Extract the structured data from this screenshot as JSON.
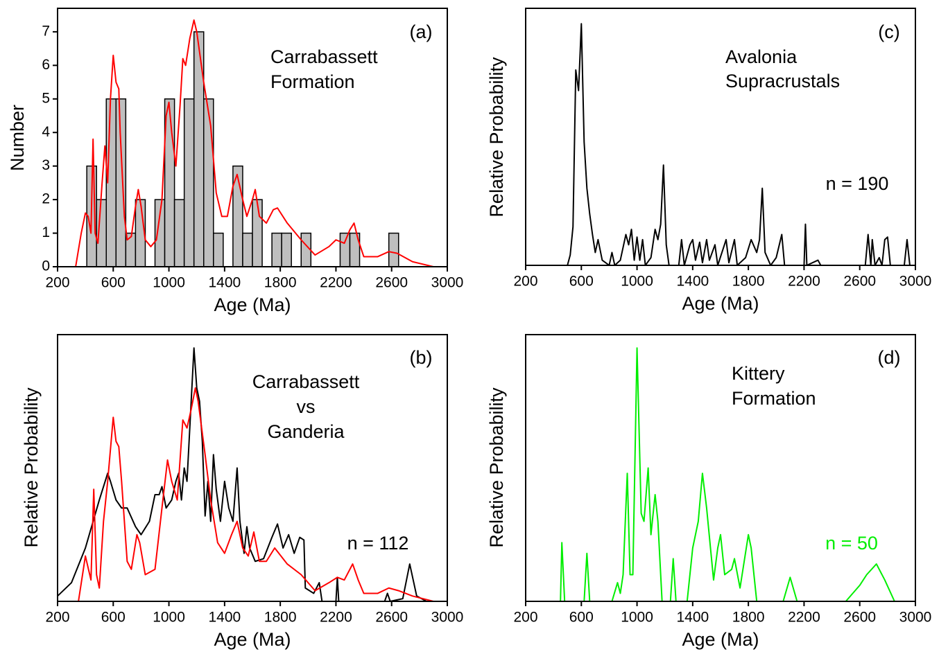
{
  "chart_data": [
    {
      "type": "histogram",
      "xlabel": "Age (Ma)",
      "ylabel": "Number",
      "xlim": [
        200,
        3000
      ],
      "xticks": [
        200,
        600,
        1000,
        1400,
        1800,
        2200,
        2600,
        3000
      ],
      "ylim": [
        0,
        7.7
      ],
      "yticks": [
        0,
        1,
        2,
        3,
        4,
        5,
        6,
        7
      ],
      "bins": [
        410,
        480,
        550,
        620,
        690,
        760,
        830,
        900,
        970,
        1040,
        1110,
        1180,
        1250,
        1320,
        1390,
        1460,
        1530,
        1600,
        1670,
        1740,
        1810,
        1880,
        1950,
        2020,
        2090,
        2160,
        2230,
        2300,
        2370,
        2440,
        2510,
        2580,
        2650
      ],
      "values": [
        3,
        2,
        5,
        5,
        1,
        2,
        0,
        2,
        5,
        2,
        5,
        7,
        5,
        1,
        0,
        3,
        1,
        2,
        0,
        1,
        1,
        0,
        1,
        0,
        0,
        0,
        1,
        1,
        0,
        0,
        0,
        1
      ],
      "bar_color": "#bfbfbf",
      "series": [
        {
          "color": "#ff0000",
          "x": [
            330,
            370,
            400,
            420,
            440,
            455,
            470,
            490,
            520,
            540,
            560,
            580,
            600,
            620,
            640,
            650,
            680,
            700,
            730,
            760,
            780,
            800,
            830,
            870,
            910,
            950,
            980,
            1000,
            1020,
            1050,
            1080,
            1100,
            1120,
            1150,
            1180,
            1200,
            1250,
            1300,
            1340,
            1380,
            1420,
            1460,
            1490,
            1530,
            1560,
            1600,
            1620,
            1650,
            1700,
            1750,
            1780,
            1850,
            1950,
            2050,
            2150,
            2200,
            2260,
            2300,
            2330,
            2360,
            2400,
            2500,
            2580,
            2640,
            2750,
            2900
          ],
          "values": [
            0,
            1.0,
            1.6,
            1.5,
            1.0,
            3.8,
            1.0,
            0.7,
            2.5,
            3.6,
            2.5,
            5.0,
            6.3,
            5.5,
            5.3,
            4.0,
            1.5,
            0.8,
            0.9,
            1.8,
            2.3,
            1.8,
            0.8,
            0.6,
            0.8,
            2.0,
            4.5,
            4.9,
            4.0,
            3.0,
            4.8,
            6.2,
            6.0,
            6.8,
            7.35,
            7.0,
            5.5,
            4.2,
            2.2,
            1.5,
            1.5,
            2.4,
            2.75,
            2.0,
            1.5,
            2.0,
            2.3,
            1.5,
            1.3,
            1.7,
            1.75,
            1.3,
            0.8,
            0.35,
            0.6,
            0.8,
            0.7,
            1.1,
            1.3,
            0.8,
            0.3,
            0.3,
            0.45,
            0.4,
            0.15,
            0
          ]
        }
      ],
      "annotations": [
        {
          "text": "(a)",
          "color": "#000000"
        },
        {
          "text": "Carrabassett",
          "color": "#000000"
        },
        {
          "text": "Formation",
          "color": "#000000"
        }
      ]
    },
    {
      "type": "line",
      "xlabel": "Age (Ma)",
      "ylabel": "Relative Probability",
      "xlim": [
        200,
        3000
      ],
      "xticks": [
        200,
        600,
        1000,
        1400,
        1800,
        2200,
        2600,
        3000
      ],
      "ylim": [
        0,
        1
      ],
      "series": [
        {
          "color": "#000000",
          "x": [
            200,
            300,
            400,
            500,
            560,
            580,
            620,
            660,
            700,
            760,
            800,
            860,
            900,
            930,
            950,
            980,
            1020,
            1050,
            1070,
            1090,
            1110,
            1130,
            1150,
            1170,
            1180,
            1200,
            1220,
            1240,
            1260,
            1280,
            1300,
            1320,
            1340,
            1370,
            1400,
            1430,
            1460,
            1490,
            1510,
            1540,
            1560,
            1580,
            1620,
            1680,
            1740,
            1780,
            1820,
            1860,
            1900,
            1940,
            1970,
            1980,
            2040,
            2080,
            2100,
            2200,
            2210,
            2220,
            2550,
            2570,
            2590,
            2680,
            2730,
            2780,
            2850,
            3000
          ],
          "values": [
            0.02,
            0.07,
            0.2,
            0.38,
            0.48,
            0.45,
            0.38,
            0.35,
            0.35,
            0.28,
            0.25,
            0.3,
            0.4,
            0.4,
            0.43,
            0.35,
            0.38,
            0.45,
            0.48,
            0.38,
            0.5,
            0.45,
            0.65,
            0.85,
            0.95,
            0.8,
            0.75,
            0.6,
            0.32,
            0.45,
            0.3,
            0.55,
            0.42,
            0.3,
            0.45,
            0.35,
            0.3,
            0.5,
            0.3,
            0.18,
            0.28,
            0.2,
            0.15,
            0.16,
            0.24,
            0.29,
            0.2,
            0.25,
            0.18,
            0.24,
            0.23,
            0.05,
            0.03,
            0.07,
            0,
            0,
            0.09,
            0,
            0,
            0.03,
            0,
            0.01,
            0.14,
            0.02,
            0,
            0
          ]
        },
        {
          "color": "#ff0000",
          "x": [
            350,
            400,
            440,
            460,
            480,
            500,
            530,
            560,
            600,
            620,
            640,
            660,
            700,
            730,
            770,
            790,
            830,
            900,
            950,
            990,
            1020,
            1060,
            1100,
            1130,
            1160,
            1190,
            1210,
            1260,
            1300,
            1350,
            1400,
            1450,
            1490,
            1530,
            1570,
            1610,
            1650,
            1700,
            1760,
            1850,
            1950,
            2050,
            2150,
            2210,
            2260,
            2320,
            2360,
            2400,
            2500,
            2580,
            2650,
            2750,
            2900
          ],
          "values": [
            0,
            0.17,
            0.08,
            0.42,
            0.1,
            0.05,
            0.3,
            0.45,
            0.69,
            0.6,
            0.58,
            0.45,
            0.15,
            0.12,
            0.25,
            0.22,
            0.1,
            0.12,
            0.35,
            0.53,
            0.45,
            0.38,
            0.68,
            0.65,
            0.72,
            0.8,
            0.75,
            0.55,
            0.38,
            0.22,
            0.18,
            0.25,
            0.3,
            0.2,
            0.17,
            0.26,
            0.15,
            0.15,
            0.2,
            0.14,
            0.1,
            0.04,
            0.07,
            0.09,
            0.08,
            0.14,
            0.08,
            0.03,
            0.03,
            0.05,
            0.04,
            0.02,
            0
          ]
        }
      ],
      "annotations": [
        {
          "text": "(b)",
          "color": "#000000"
        },
        {
          "text": "Carrabassett",
          "color": "#000000"
        },
        {
          "text": "vs",
          "color": "#000000"
        },
        {
          "text": "Ganderia",
          "color": "#000000"
        },
        {
          "text": "n = 112",
          "color": "#000000"
        }
      ]
    },
    {
      "type": "line",
      "xlabel": "Age (Ma)",
      "ylabel": "Relative Probability",
      "xlim": [
        200,
        3000
      ],
      "xticks": [
        200,
        600,
        1000,
        1400,
        1800,
        2200,
        2600,
        3000
      ],
      "ylim": [
        0,
        1
      ],
      "series": [
        {
          "color": "#000000",
          "x": [
            500,
            520,
            540,
            560,
            580,
            600,
            620,
            640,
            660,
            680,
            700,
            720,
            750,
            800,
            820,
            840,
            880,
            920,
            940,
            960,
            980,
            1000,
            1020,
            1040,
            1060,
            1100,
            1130,
            1150,
            1170,
            1190,
            1210,
            1230,
            1300,
            1320,
            1340,
            1380,
            1400,
            1420,
            1450,
            1470,
            1500,
            1520,
            1560,
            1580,
            1640,
            1660,
            1700,
            1720,
            1780,
            1820,
            1860,
            1880,
            1900,
            1920,
            1960,
            2000,
            2040,
            2060,
            2200,
            2210,
            2220,
            2300,
            2320,
            2640,
            2660,
            2680,
            2690,
            2710,
            2740,
            2760,
            2780,
            2800,
            2820,
            2920,
            2940,
            2960
          ],
          "values": [
            0,
            0.04,
            0.15,
            0.76,
            0.68,
            0.94,
            0.48,
            0.3,
            0.2,
            0.12,
            0.05,
            0.1,
            0.02,
            0,
            0.05,
            0,
            0.02,
            0.12,
            0.08,
            0.14,
            0.02,
            0.11,
            0.02,
            0.1,
            0,
            0.03,
            0.14,
            0.1,
            0.16,
            0.39,
            0.08,
            0,
            0,
            0.1,
            0,
            0.08,
            0.1,
            0.02,
            0.09,
            0.01,
            0.1,
            0.02,
            0.08,
            0,
            0.1,
            0.01,
            0.1,
            0,
            0.03,
            0.1,
            0.05,
            0.1,
            0.3,
            0.05,
            0,
            0.03,
            0.12,
            0,
            0,
            0.16,
            0,
            0.02,
            0,
            0,
            0.12,
            0,
            0.1,
            0,
            0.03,
            0,
            0.1,
            0.11,
            0,
            0,
            0.1,
            0
          ]
        }
      ],
      "annotations": [
        {
          "text": "(c)",
          "color": "#000000"
        },
        {
          "text": "Avalonia",
          "color": "#000000"
        },
        {
          "text": "Supracrustals",
          "color": "#000000"
        },
        {
          "text": "n = 190",
          "color": "#000000"
        }
      ]
    },
    {
      "type": "line",
      "xlabel": "Age (Ma)",
      "ylabel": "Relative Probability",
      "xlim": [
        200,
        3000
      ],
      "xticks": [
        200,
        600,
        1000,
        1400,
        1800,
        2200,
        2600,
        3000
      ],
      "ylim": [
        0,
        1
      ],
      "series": [
        {
          "color": "#00ee00",
          "x": [
            400,
            450,
            460,
            480,
            620,
            640,
            660,
            820,
            860,
            880,
            900,
            930,
            950,
            970,
            1000,
            1030,
            1050,
            1080,
            1100,
            1130,
            1150,
            1180,
            1240,
            1260,
            1280,
            1360,
            1400,
            1440,
            1470,
            1500,
            1550,
            1580,
            1600,
            1630,
            1680,
            1700,
            1740,
            1800,
            1820,
            1860,
            2050,
            2100,
            2150,
            2500,
            2600,
            2650,
            2720,
            2780,
            2850,
            3000
          ],
          "values": [
            0,
            0,
            0.22,
            0,
            0,
            0.18,
            0,
            0,
            0.07,
            0.03,
            0.1,
            0.48,
            0.1,
            0.1,
            0.95,
            0.33,
            0.3,
            0.5,
            0.25,
            0.4,
            0.3,
            0,
            0,
            0.16,
            0,
            0,
            0.2,
            0.3,
            0.48,
            0.35,
            0.08,
            0.2,
            0.25,
            0.1,
            0.12,
            0.16,
            0.05,
            0.25,
            0.2,
            0,
            0,
            0.09,
            0,
            0,
            0.06,
            0.1,
            0.14,
            0.08,
            0,
            0
          ]
        }
      ],
      "annotations": [
        {
          "text": "(d)",
          "color": "#000000"
        },
        {
          "text": "Kittery",
          "color": "#000000"
        },
        {
          "text": "Formation",
          "color": "#000000"
        },
        {
          "text": "n = 50",
          "color": "#00ee00"
        }
      ]
    }
  ]
}
